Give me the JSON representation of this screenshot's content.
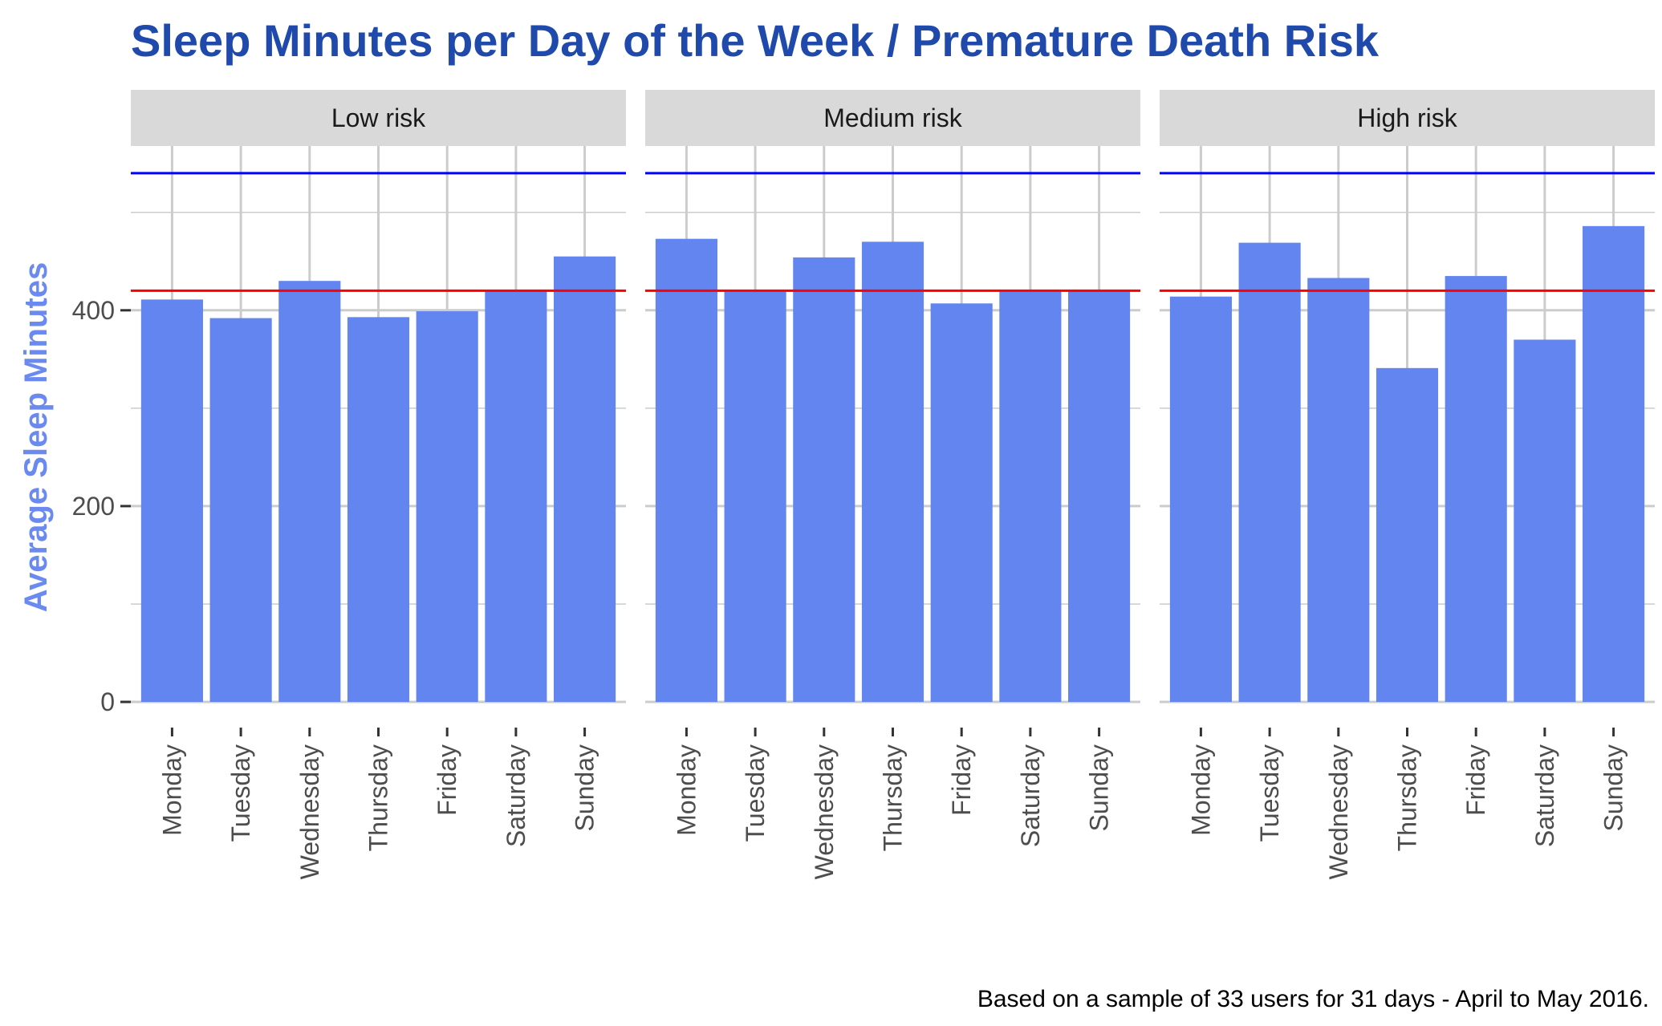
{
  "chart_data": {
    "type": "bar",
    "title": "Sleep Minutes per Day of the Week / Premature Death Risk",
    "ylabel": "Average Sleep Minutes",
    "xlabel": "",
    "caption": "Based on a sample of 33 users for 31 days - April to May 2016.",
    "categories": [
      "Monday",
      "Tuesday",
      "Wednesday",
      "Thursday",
      "Friday",
      "Saturday",
      "Sunday"
    ],
    "ylim": [
      0,
      590
    ],
    "yticks": [
      0,
      200,
      400
    ],
    "reference_lines": [
      {
        "value": 540,
        "color": "#0000ff"
      },
      {
        "value": 420,
        "color": "#ff0000"
      }
    ],
    "panels": [
      {
        "label": "Low risk",
        "values": [
          411,
          392,
          430,
          393,
          399,
          421,
          455
        ]
      },
      {
        "label": "Medium risk",
        "values": [
          473,
          419,
          454,
          470,
          407,
          419,
          421
        ]
      },
      {
        "label": "High risk",
        "values": [
          414,
          469,
          433,
          341,
          435,
          370,
          486
        ]
      }
    ],
    "colors": {
      "bar": "#6385f0",
      "title": "#1f4aab",
      "ylabel": "#6b8af0",
      "strip": "#d9d9d9",
      "grid": "#cccccc"
    },
    "grid": true
  }
}
